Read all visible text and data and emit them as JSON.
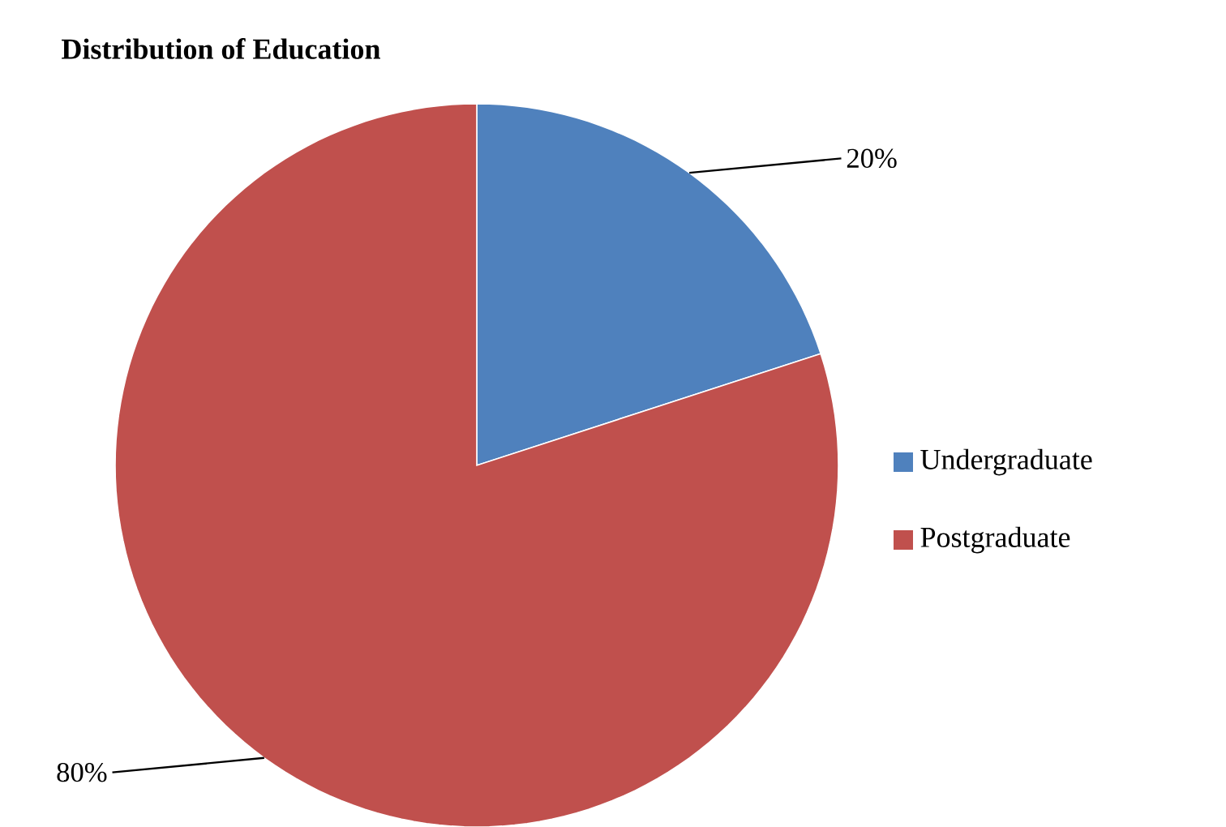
{
  "chart_data": {
    "type": "pie",
    "title": "Distribution of Education",
    "categories": [
      "Undergraduate",
      "Postgraduate"
    ],
    "values": [
      20,
      80
    ],
    "colors": [
      "#4f81bd",
      "#c0504d"
    ],
    "value_labels": [
      "20%",
      "80%"
    ],
    "legend": "right"
  }
}
